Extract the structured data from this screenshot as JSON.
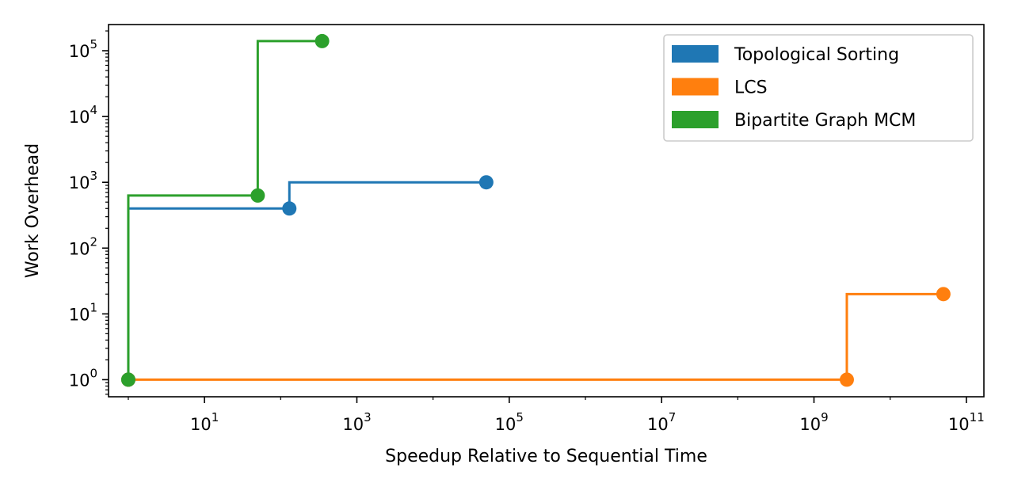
{
  "chart_data": {
    "type": "line",
    "title": "",
    "xlabel": "Speedup Relative to Sequential Time",
    "ylabel": "Work Overhead",
    "x_scale": "log",
    "y_scale": "log",
    "xlim": [
      0.55,
      170000000000
    ],
    "ylim": [
      0.55,
      250000
    ],
    "x_ticks": [
      {
        "base": "10",
        "exp": "1",
        "value": 10
      },
      {
        "base": "10",
        "exp": "3",
        "value": 1000
      },
      {
        "base": "10",
        "exp": "5",
        "value": 100000
      },
      {
        "base": "10",
        "exp": "7",
        "value": 10000000
      },
      {
        "base": "10",
        "exp": "9",
        "value": 1000000000
      },
      {
        "base": "10",
        "exp": "11",
        "value": 100000000000
      }
    ],
    "y_ticks": [
      {
        "base": "10",
        "exp": "0",
        "value": 1
      },
      {
        "base": "10",
        "exp": "1",
        "value": 10
      },
      {
        "base": "10",
        "exp": "2",
        "value": 100
      },
      {
        "base": "10",
        "exp": "3",
        "value": 1000
      },
      {
        "base": "10",
        "exp": "4",
        "value": 10000
      },
      {
        "base": "10",
        "exp": "5",
        "value": 100000
      }
    ],
    "grid": false,
    "legend_position": "top-right",
    "series": [
      {
        "name": "Topological Sorting",
        "color": "#1f77b4",
        "x": [
          1,
          130,
          50000
        ],
        "y": [
          1,
          400,
          1000
        ]
      },
      {
        "name": "LCS",
        "color": "#ff7f0e",
        "x": [
          1,
          2700000000,
          50000000000
        ],
        "y": [
          1,
          1,
          20
        ]
      },
      {
        "name": "Bipartite Graph MCM",
        "color": "#2ca02c",
        "x": [
          1,
          50,
          350
        ],
        "y": [
          1,
          630,
          140000
        ]
      }
    ]
  }
}
